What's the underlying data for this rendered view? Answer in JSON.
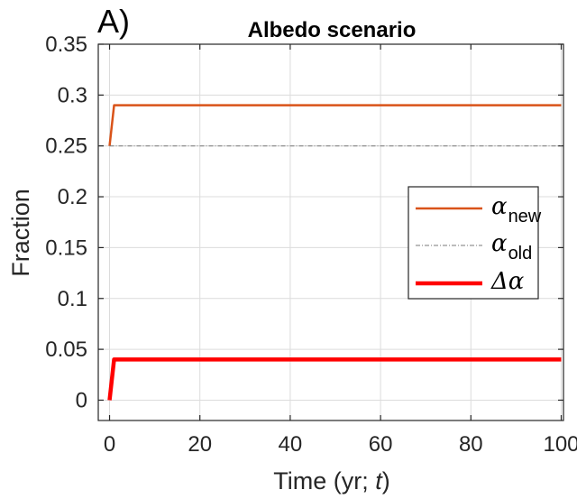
{
  "panel_label": "A)",
  "chart_data": {
    "type": "line",
    "title": "Albedo scenario",
    "xlabel": "Time (yr; ",
    "xlabel_var": "t",
    "xlabel_close": ")",
    "ylabel": "Fraction",
    "xlim": [
      -2.5,
      100.5
    ],
    "ylim": [
      -0.02,
      0.35
    ],
    "xticks": [
      0,
      20,
      40,
      60,
      80,
      100
    ],
    "xtick_labels": [
      "0",
      "20",
      "40",
      "60",
      "80",
      "100"
    ],
    "yticks": [
      0,
      0.05,
      0.1,
      0.15,
      0.2,
      0.25,
      0.3,
      0.35
    ],
    "ytick_labels": [
      "0",
      "0.05",
      "0.1",
      "0.15",
      "0.2",
      "0.25",
      "0.3",
      "0.35"
    ],
    "grid": true,
    "legend_position": "center-right",
    "series": [
      {
        "name": "α",
        "sub": "new",
        "color": "#d95319",
        "style": "solid",
        "width": 2.5,
        "x": [
          0,
          1,
          100
        ],
        "y": [
          0.25,
          0.29,
          0.29
        ]
      },
      {
        "name": "α",
        "sub": "old",
        "color": "#7a7a7a",
        "style": "dashdot",
        "width": 1,
        "x": [
          0,
          100
        ],
        "y": [
          0.25,
          0.25
        ]
      },
      {
        "name": "Δα",
        "sub": "",
        "color": "#ff0000",
        "style": "solid",
        "width": 4.5,
        "x": [
          0,
          1,
          100
        ],
        "y": [
          0,
          0.04,
          0.04
        ]
      }
    ]
  }
}
